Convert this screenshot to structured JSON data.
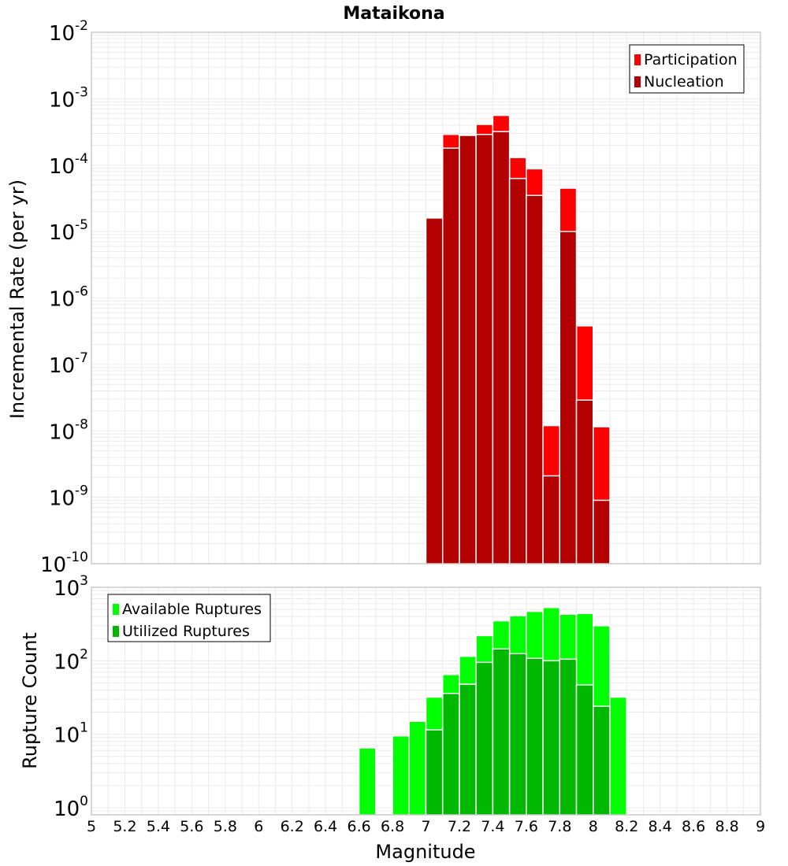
{
  "chart_data": [
    {
      "type": "bar",
      "title": "Mataikona",
      "xlabel": "",
      "ylabel": "Incremental Rate (per yr)",
      "yscale": "log",
      "ylim": [
        1e-10,
        0.01
      ],
      "xlim": [
        5,
        9
      ],
      "grid": true,
      "legend_position": "top-right",
      "bar_width": 0.1,
      "x": [
        7.0,
        7.1,
        7.2,
        7.3,
        7.4,
        7.5,
        7.6,
        7.7,
        7.8,
        7.9,
        8.0
      ],
      "series": [
        {
          "name": "Participation",
          "color": "#ff0000",
          "values": [
            1.6e-05,
            0.00029,
            0.00029,
            0.00041,
            0.00056,
            0.00013,
            8.8e-05,
            1.2e-08,
            4.5e-05,
            3.8e-07,
            1.15e-08
          ]
        },
        {
          "name": "Nucleation",
          "color": "#b30000",
          "values": [
            1.6e-05,
            0.00018,
            0.00028,
            0.00029,
            0.00032,
            6.3e-05,
            3.5e-05,
            2.1e-09,
            1e-05,
            2.9e-08,
            9e-10
          ]
        }
      ],
      "y_tick_exponents": [
        "-10",
        "-9",
        "-8",
        "-7",
        "-6",
        "-5",
        "-4",
        "-3",
        "-2"
      ]
    },
    {
      "type": "bar",
      "title": "",
      "xlabel": "Magnitude",
      "ylabel": "Rupture Count",
      "yscale": "log",
      "ylim": [
        0.8,
        1000
      ],
      "xlim": [
        5,
        9
      ],
      "grid": true,
      "legend_position": "top-left",
      "bar_width": 0.1,
      "x": [
        6.6,
        6.8,
        6.9,
        7.0,
        7.1,
        7.2,
        7.3,
        7.4,
        7.5,
        7.6,
        7.7,
        7.8,
        7.9,
        8.0,
        8.1
      ],
      "series": [
        {
          "name": "Available Ruptures",
          "color": "#00ff00",
          "values": [
            6.5,
            9.5,
            15,
            32,
            65,
            115,
            220,
            350,
            410,
            470,
            530,
            430,
            440,
            300,
            32
          ]
        },
        {
          "name": "Utilized Ruptures",
          "color": "#00b800",
          "values": [
            0,
            0,
            0,
            11.5,
            36,
            48,
            95,
            145,
            125,
            108,
            100,
            105,
            47,
            24,
            0
          ]
        }
      ],
      "y_tick_exponents": [
        "0",
        "1",
        "2",
        "3"
      ],
      "x_tick_labels": [
        "5",
        "5.2",
        "5.4",
        "5.6",
        "5.8",
        "6",
        "6.2",
        "6.4",
        "6.6",
        "6.8",
        "7",
        "7.2",
        "7.4",
        "7.6",
        "7.8",
        "8",
        "8.2",
        "8.4",
        "8.6",
        "8.8",
        "9"
      ]
    }
  ],
  "colors": {
    "grid": "#ebebeb",
    "frame": "#b0b0b0",
    "bar_gap": "#ffffff"
  }
}
